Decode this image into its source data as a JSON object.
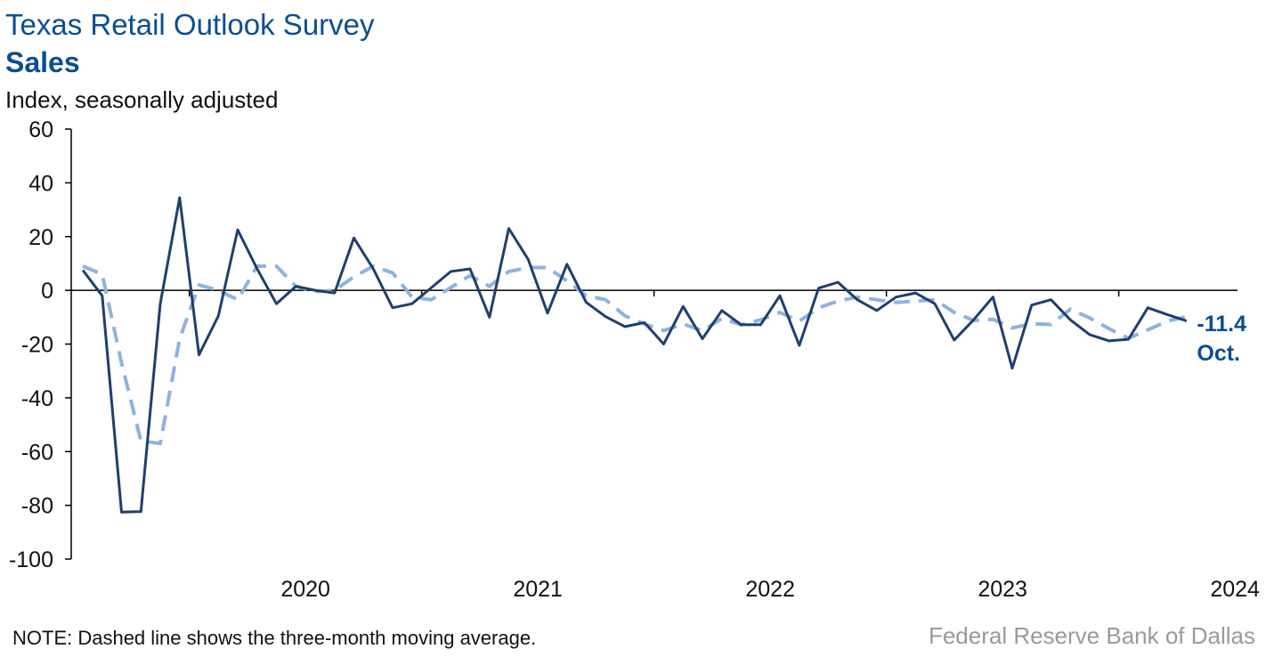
{
  "header": {
    "title": "Texas Retail Outlook Survey",
    "subtitle": "Sales",
    "unit": "Index, seasonally adjusted"
  },
  "footer": {
    "note": "NOTE: Dashed line shows the three-month moving average.",
    "source": "Federal Reserve Bank of Dallas"
  },
  "colors": {
    "series_solid": "#1f3f6e",
    "series_dashed": "#8fb3e0",
    "label": "#0b4e8f",
    "axis": "#000000"
  },
  "chart_data": {
    "type": "line",
    "title": "Sales",
    "ylabel": "Index, seasonally adjusted",
    "ylim": [
      -100,
      60
    ],
    "yticks": [
      60,
      40,
      20,
      0,
      -20,
      -40,
      -60,
      -80,
      -100
    ],
    "x_start": "2019-07",
    "xlim": [
      "2019-07",
      "2024-10"
    ],
    "year_labels": [
      "2020",
      "2021",
      "2022",
      "2023",
      "2024"
    ],
    "grid": false,
    "end_value_label": "-11.4",
    "end_month_label": "Oct.",
    "series": [
      {
        "style": "solid",
        "values": [
          7.5,
          -2,
          -82.5,
          -82.3,
          -5,
          34.5,
          -24,
          -9.5,
          22.5,
          8,
          -5,
          1.5,
          0,
          -1,
          19.5,
          8,
          -6.5,
          -5,
          1,
          7,
          8,
          -10,
          23,
          11.5,
          -8.5,
          9.7,
          -4.5,
          -9.8,
          -13.5,
          -12,
          -20,
          -6,
          -18,
          -7.5,
          -12.8,
          -12.8,
          -2,
          -20.5,
          0.8,
          3,
          -3.5,
          -7.5,
          -2.5,
          -1,
          -5,
          -18.5,
          -11,
          -2.5,
          -29,
          -5.5,
          -3.5,
          -11,
          -16.5,
          -18.8,
          -18.2,
          -6.5,
          -9,
          -11.4
        ]
      },
      {
        "style": "dashed",
        "values": [
          9,
          6,
          -27,
          -56,
          -57,
          -18,
          2,
          0,
          -3.5,
          9,
          9,
          1.5,
          -0.5,
          0,
          5,
          9,
          6.5,
          -2.5,
          -3.5,
          1,
          5.5,
          1.5,
          7,
          8.5,
          8.5,
          3.5,
          -2,
          -3.5,
          -9.5,
          -12.5,
          -15,
          -12.5,
          -15,
          -10.5,
          -12.8,
          -11,
          -8.2,
          -11.5,
          -6.5,
          -4,
          -2.5,
          -3.5,
          -4.5,
          -4,
          -3.5,
          -8.2,
          -11.2,
          -10.8,
          -14,
          -12.4,
          -12.7,
          -7,
          -10.3,
          -14.3,
          -17.8,
          -14.7,
          -11.5,
          -9.8
        ]
      }
    ]
  }
}
